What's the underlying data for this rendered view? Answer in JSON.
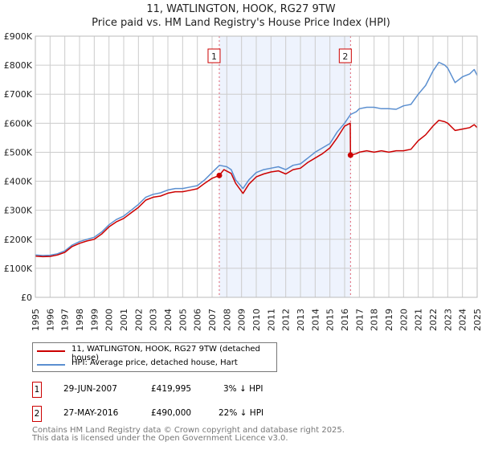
{
  "title": {
    "line1": "11, WATLINGTON, HOOK, RG27 9TW",
    "line2": "Price paid vs. HM Land Registry's House Price Index (HPI)"
  },
  "chart_data": {
    "type": "line",
    "title": "11, WATLINGTON, HOOK, RG27 9TW — Price paid vs. HM Land Registry's House Price Index (HPI)",
    "xlim": [
      1995,
      2025
    ],
    "ylim": [
      0,
      900000
    ],
    "x_ticks": [
      "1995",
      "1996",
      "1997",
      "1998",
      "1999",
      "2000",
      "2001",
      "2002",
      "2003",
      "2004",
      "2005",
      "2006",
      "2007",
      "2008",
      "2009",
      "2010",
      "2011",
      "2012",
      "2013",
      "2014",
      "2015",
      "2016",
      "2017",
      "2018",
      "2019",
      "2020",
      "2021",
      "2022",
      "2023",
      "2024",
      "2025"
    ],
    "y_ticks": [
      {
        "v": 0,
        "label": "£0"
      },
      {
        "v": 100000,
        "label": "£100K"
      },
      {
        "v": 200000,
        "label": "£200K"
      },
      {
        "v": 300000,
        "label": "£300K"
      },
      {
        "v": 400000,
        "label": "£400K"
      },
      {
        "v": 500000,
        "label": "£500K"
      },
      {
        "v": 600000,
        "label": "£600K"
      },
      {
        "v": 700000,
        "label": "£700K"
      },
      {
        "v": 800000,
        "label": "£800K"
      },
      {
        "v": 900000,
        "label": "£900K"
      }
    ],
    "grid": true,
    "series": [
      {
        "name": "HPI: Average price, detached house, Hart",
        "color": "#5b8fd0",
        "points": [
          [
            1995,
            146000
          ],
          [
            1995.5,
            144000
          ],
          [
            1996,
            145000
          ],
          [
            1996.5,
            150000
          ],
          [
            1997,
            160000
          ],
          [
            1997.5,
            180000
          ],
          [
            1998,
            192000
          ],
          [
            1998.5,
            200000
          ],
          [
            1999,
            207000
          ],
          [
            1999.5,
            225000
          ],
          [
            2000,
            250000
          ],
          [
            2000.5,
            268000
          ],
          [
            2001,
            280000
          ],
          [
            2001.5,
            300000
          ],
          [
            2002,
            320000
          ],
          [
            2002.5,
            345000
          ],
          [
            2003,
            355000
          ],
          [
            2003.5,
            360000
          ],
          [
            2004,
            370000
          ],
          [
            2004.5,
            375000
          ],
          [
            2005,
            375000
          ],
          [
            2005.5,
            380000
          ],
          [
            2006,
            385000
          ],
          [
            2006.5,
            405000
          ],
          [
            2007,
            430000
          ],
          [
            2007.5,
            455000
          ],
          [
            2008,
            450000
          ],
          [
            2008.3,
            440000
          ],
          [
            2008.6,
            405000
          ],
          [
            2009.1,
            375000
          ],
          [
            2009.5,
            405000
          ],
          [
            2010,
            430000
          ],
          [
            2010.5,
            440000
          ],
          [
            2011,
            445000
          ],
          [
            2011.5,
            450000
          ],
          [
            2012,
            440000
          ],
          [
            2012.5,
            455000
          ],
          [
            2013,
            460000
          ],
          [
            2013.5,
            480000
          ],
          [
            2014,
            500000
          ],
          [
            2014.5,
            515000
          ],
          [
            2015,
            530000
          ],
          [
            2015.5,
            570000
          ],
          [
            2016,
            600000
          ],
          [
            2016.4,
            630000
          ],
          [
            2016.8,
            640000
          ],
          [
            2017,
            650000
          ],
          [
            2017.5,
            655000
          ],
          [
            2018,
            655000
          ],
          [
            2018.5,
            650000
          ],
          [
            2019,
            650000
          ],
          [
            2019.5,
            648000
          ],
          [
            2020,
            660000
          ],
          [
            2020.5,
            665000
          ],
          [
            2021,
            700000
          ],
          [
            2021.5,
            730000
          ],
          [
            2022,
            780000
          ],
          [
            2022.4,
            810000
          ],
          [
            2022.8,
            800000
          ],
          [
            2023,
            790000
          ],
          [
            2023.5,
            740000
          ],
          [
            2024,
            760000
          ],
          [
            2024.5,
            770000
          ],
          [
            2024.8,
            785000
          ],
          [
            2025,
            765000
          ]
        ]
      },
      {
        "name": "11, WATLINGTON, HOOK, RG27 9TW (detached house)",
        "color": "#cc0000",
        "points": [
          [
            1995,
            142000
          ],
          [
            1995.5,
            140000
          ],
          [
            1996,
            141000
          ],
          [
            1996.5,
            146000
          ],
          [
            1997,
            155000
          ],
          [
            1997.5,
            175000
          ],
          [
            1998,
            186000
          ],
          [
            1998.5,
            194000
          ],
          [
            1999,
            200000
          ],
          [
            1999.5,
            218000
          ],
          [
            2000,
            243000
          ],
          [
            2000.5,
            260000
          ],
          [
            2001,
            272000
          ],
          [
            2001.5,
            291000
          ],
          [
            2002,
            310000
          ],
          [
            2002.5,
            335000
          ],
          [
            2003,
            345000
          ],
          [
            2003.5,
            349000
          ],
          [
            2004,
            359000
          ],
          [
            2004.5,
            364000
          ],
          [
            2005,
            364000
          ],
          [
            2005.5,
            369000
          ],
          [
            2006,
            374000
          ],
          [
            2006.5,
            393000
          ],
          [
            2007,
            410000
          ],
          [
            2007.49,
            419995
          ],
          [
            2007.8,
            440000
          ],
          [
            2008.3,
            427000
          ],
          [
            2008.6,
            393000
          ],
          [
            2009.1,
            358000
          ],
          [
            2009.5,
            390000
          ],
          [
            2010,
            415000
          ],
          [
            2010.5,
            425000
          ],
          [
            2011,
            432000
          ],
          [
            2011.5,
            436000
          ],
          [
            2012,
            425000
          ],
          [
            2012.5,
            440000
          ],
          [
            2013,
            445000
          ],
          [
            2013.5,
            465000
          ],
          [
            2014,
            480000
          ],
          [
            2014.5,
            495000
          ],
          [
            2015,
            515000
          ],
          [
            2015.5,
            550000
          ],
          [
            2016,
            590000
          ],
          [
            2016.38,
            600000
          ],
          [
            2016.4,
            490000
          ],
          [
            2016.8,
            495000
          ],
          [
            2017,
            500000
          ],
          [
            2017.5,
            505000
          ],
          [
            2018,
            500000
          ],
          [
            2018.5,
            505000
          ],
          [
            2019,
            500000
          ],
          [
            2019.5,
            505000
          ],
          [
            2020,
            505000
          ],
          [
            2020.5,
            510000
          ],
          [
            2021,
            540000
          ],
          [
            2021.5,
            560000
          ],
          [
            2022,
            590000
          ],
          [
            2022.4,
            610000
          ],
          [
            2022.8,
            605000
          ],
          [
            2023,
            600000
          ],
          [
            2023.5,
            575000
          ],
          [
            2024,
            580000
          ],
          [
            2024.5,
            585000
          ],
          [
            2024.8,
            595000
          ],
          [
            2025,
            585000
          ]
        ]
      }
    ],
    "sales": [
      {
        "id": "1",
        "x": 2007.49,
        "price": 419995
      },
      {
        "id": "2",
        "x": 2016.4,
        "price": 490000
      }
    ],
    "legend_placement": "below"
  },
  "legend": {
    "items": [
      {
        "label": "11, WATLINGTON, HOOK, RG27 9TW (detached house)",
        "color": "#cc0000"
      },
      {
        "label": "HPI: Average price, detached house, Hart",
        "color": "#5b8fd0"
      }
    ]
  },
  "transactions": [
    {
      "id": "1",
      "date": "29-JUN-2007",
      "price": "£419,995",
      "delta": "3% ↓ HPI"
    },
    {
      "id": "2",
      "date": "27-MAY-2016",
      "price": "£490,000",
      "delta": "22% ↓ HPI"
    }
  ],
  "footer": {
    "line1": "Contains HM Land Registry data © Crown copyright and database right 2025.",
    "line2": "This data is licensed under the Open Government Licence v3.0."
  }
}
